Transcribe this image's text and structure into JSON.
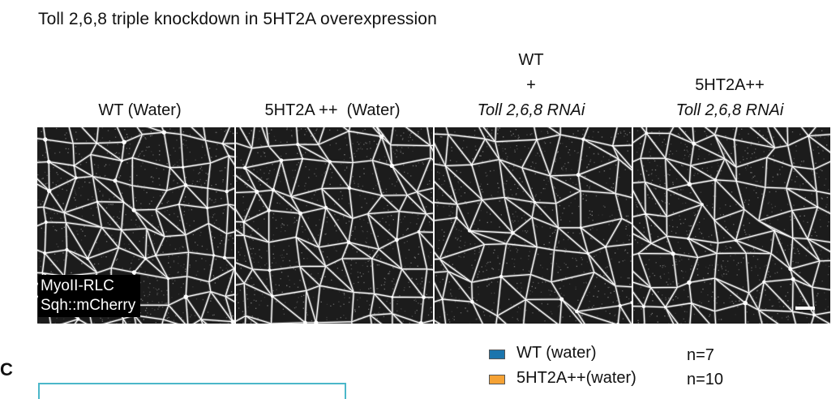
{
  "figure_title": "Toll 2,6,8 triple knockdown in 5HT2A overexpression",
  "columns": [
    {
      "line1": "WT (Water)"
    },
    {
      "line1": "5HT2A ++  (Water)"
    },
    {
      "line1": "WT",
      "line2": "+",
      "line3": "Toll 2,6,8 RNAi"
    },
    {
      "line1": "5HT2A++",
      "line2": "Toll 2,6,8 RNAi"
    }
  ],
  "marker_label": {
    "line1": "MyoII-RLC",
    "line2": "Sqh::mCherry"
  },
  "legend": [
    {
      "label": "WT (water)",
      "n": "n=7",
      "color": "#1b75ad"
    },
    {
      "label": "5HT2A++(water)",
      "n": "n=10",
      "color": "#f5a235"
    }
  ],
  "panel_c_label": "C",
  "icons": {
    "scale_bar": "scale-bar-icon"
  },
  "colors": {
    "accent_box": "#4bb7c9"
  }
}
